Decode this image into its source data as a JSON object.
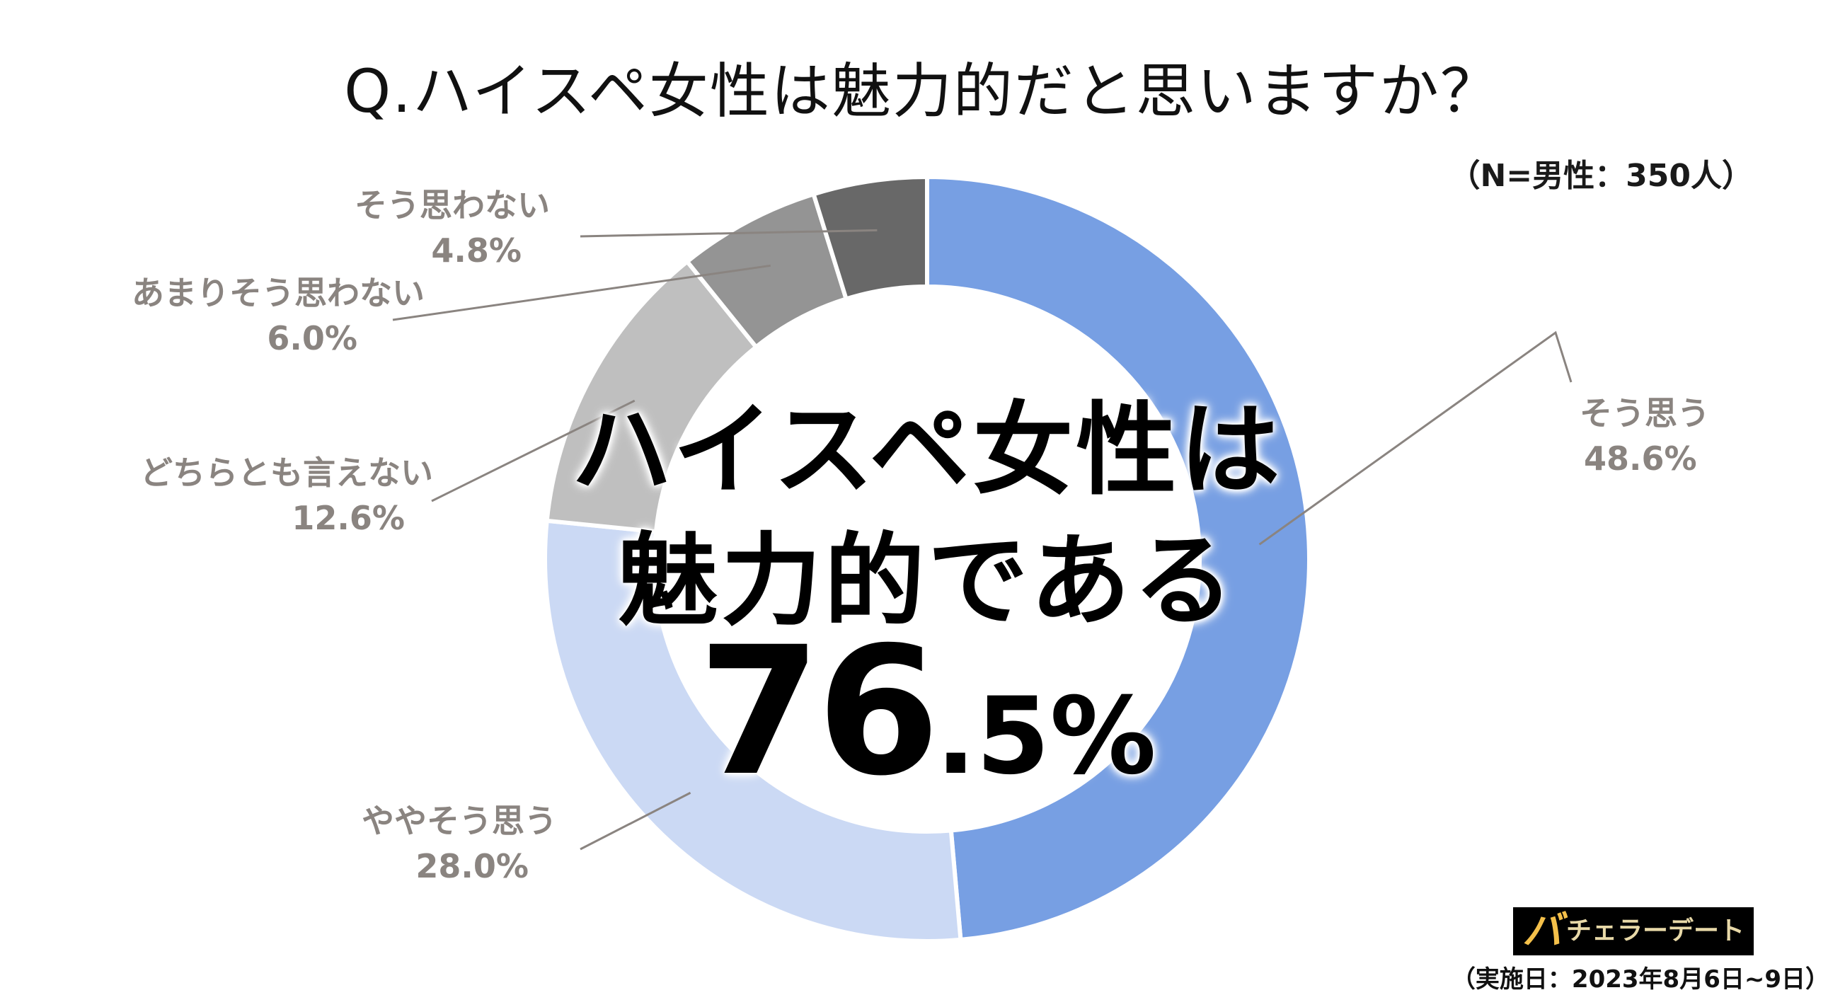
{
  "title": "Q.ハイスペ女性は魅力的だと思いますか？",
  "sample_note": "（N=男性：350人）",
  "center_text": {
    "line1": "ハイスペ女性は",
    "line2": "魅力的である",
    "value_main": "76",
    "value_dot": ".",
    "value_decimal": "5",
    "value_unit": "%"
  },
  "brand": {
    "logo_mark": "バ",
    "logo_text": "チェラーデート"
  },
  "survey_date": "（実施日：2023年8月6日~9日）",
  "chart_data": {
    "type": "pie",
    "style": "donut",
    "start_angle": "12 o'clock, clockwise",
    "categories": [
      "そう思う",
      "ややそう思う",
      "どちらとも言えない",
      "あまりそう思わない",
      "そう思わない"
    ],
    "values": [
      48.6,
      28.0,
      12.6,
      6.0,
      4.8
    ],
    "value_labels": [
      "48.6%",
      "28.0%",
      "12.6%",
      "6.0%",
      "4.8%"
    ],
    "colors": [
      "#779fe3",
      "#cbd9f4",
      "#bfbfbf",
      "#949494",
      "#686868"
    ],
    "annotation_color": "#8a8480"
  }
}
